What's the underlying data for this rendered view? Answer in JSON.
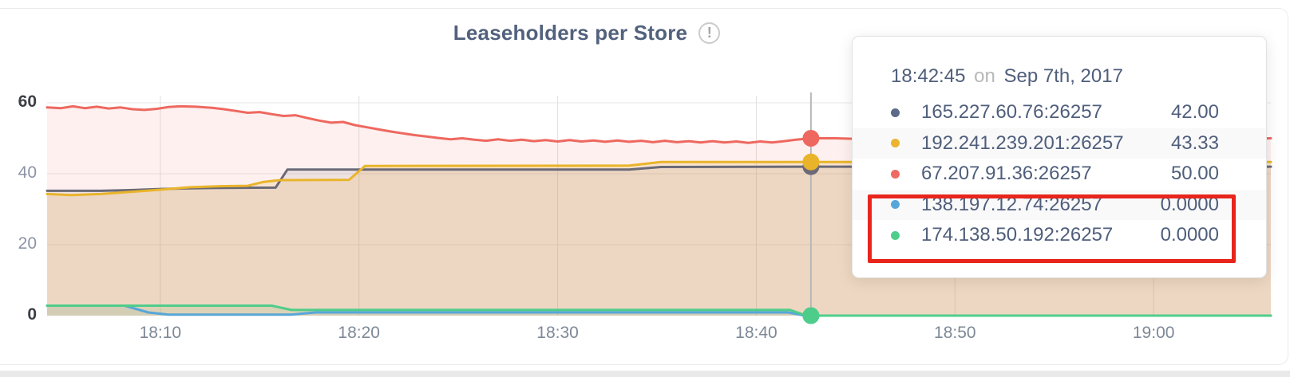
{
  "icons": {
    "info": "!"
  },
  "tooltip": {
    "time": "18:42:45",
    "conjunction": "on",
    "date": "Sep 7th, 2017",
    "rows": [
      {
        "label": "165.227.60.76:26257",
        "value": "42.00",
        "color": "#5d6b88",
        "highlighted": false
      },
      {
        "label": "192.241.239.201:26257",
        "value": "43.33",
        "color": "#eab430",
        "highlighted": false
      },
      {
        "label": "67.207.91.36:26257",
        "value": "50.00",
        "color": "#ef6a62",
        "highlighted": false
      },
      {
        "label": "138.197.12.74:26257",
        "value": "0.0000",
        "color": "#57a6d9",
        "highlighted": true
      },
      {
        "label": "174.138.50.192:26257",
        "value": "0.0000",
        "color": "#4ecd8a",
        "highlighted": true
      }
    ],
    "highlight_color": "#e8251c"
  },
  "chart_data": {
    "type": "area",
    "title": "Leaseholders per Store",
    "xlabel": "",
    "ylabel": "",
    "x_unit": "minutes after 18:00",
    "x_range": [
      4.3,
      65.9
    ],
    "y_range": [
      0,
      60
    ],
    "grid": true,
    "legend_position": "tooltip",
    "y_ticks": [
      {
        "v": 0,
        "label": "0",
        "strong": true
      },
      {
        "v": 20,
        "label": "20",
        "strong": false
      },
      {
        "v": 40,
        "label": "40",
        "strong": false
      },
      {
        "v": 60,
        "label": "60",
        "strong": true
      }
    ],
    "x_ticks": [
      {
        "t": 10,
        "label": "18:10"
      },
      {
        "t": 20,
        "label": "18:20"
      },
      {
        "t": 30,
        "label": "18:30"
      },
      {
        "t": 40,
        "label": "18:40"
      },
      {
        "t": 50,
        "label": "18:50"
      },
      {
        "t": 60,
        "label": "19:00"
      }
    ],
    "cursor": {
      "t": 42.75,
      "time": "18:42:45"
    },
    "series": [
      {
        "name": "138.197.12.74:26257",
        "color": "#57a6d9",
        "fill": "rgba(88,166,214,0.10)",
        "cursor_value": 0,
        "points": [
          [
            4.3,
            2.8
          ],
          [
            8.2,
            2.8
          ],
          [
            9.4,
            0.9
          ],
          [
            10.4,
            0.3
          ],
          [
            16.6,
            0.3
          ],
          [
            17.8,
            0.9
          ],
          [
            41.6,
            0.9
          ],
          [
            42.4,
            0.05
          ],
          [
            42.75,
            0
          ],
          [
            65.9,
            0
          ]
        ]
      },
      {
        "name": "174.138.50.192:26257",
        "color": "#4ecd8a",
        "fill": "rgba(79,206,140,0.15)",
        "cursor_value": 0,
        "points": [
          [
            4.3,
            2.8
          ],
          [
            15.6,
            2.8
          ],
          [
            16.6,
            1.6
          ],
          [
            41.7,
            1.6
          ],
          [
            42.5,
            0.05
          ],
          [
            42.75,
            0
          ],
          [
            65.9,
            0
          ]
        ]
      },
      {
        "name": "165.227.60.76:26257",
        "color": "#6a6977",
        "fill": "rgba(107,107,120,0.10)",
        "cursor_value": 42,
        "points": [
          [
            4.3,
            35.2
          ],
          [
            7,
            35.2
          ],
          [
            8.5,
            35.4
          ],
          [
            10,
            35.7
          ],
          [
            11.5,
            35.9
          ],
          [
            13,
            36
          ],
          [
            15.8,
            36.1
          ],
          [
            16.4,
            41.2
          ],
          [
            33.6,
            41.2
          ],
          [
            35.2,
            41.9
          ],
          [
            42.75,
            42
          ],
          [
            65.9,
            42
          ]
        ]
      },
      {
        "name": "192.241.239.201:26257",
        "color": "#e9b42a",
        "fill": "rgba(232,177,45,0.18)",
        "cursor_value": 43.33,
        "points": [
          [
            4.3,
            34.3
          ],
          [
            5.5,
            34
          ],
          [
            7,
            34.3
          ],
          [
            8.5,
            34.9
          ],
          [
            10,
            35.5
          ],
          [
            11.5,
            36.2
          ],
          [
            13,
            36.5
          ],
          [
            14.4,
            36.6
          ],
          [
            15.2,
            37.7
          ],
          [
            16,
            38.2
          ],
          [
            19.5,
            38.3
          ],
          [
            20.3,
            42.2
          ],
          [
            33.6,
            42.3
          ],
          [
            35.2,
            43.3
          ],
          [
            42.75,
            43.33
          ],
          [
            65.9,
            43.33
          ]
        ]
      },
      {
        "name": "67.207.91.36:26257",
        "color": "#ee685f",
        "fill": "rgba(238,104,95,0.10)",
        "cursor_value": 50,
        "points": [
          [
            4.3,
            58.7
          ],
          [
            5,
            58.5
          ],
          [
            5.6,
            59
          ],
          [
            6.2,
            58.5
          ],
          [
            6.8,
            58.9
          ],
          [
            7.4,
            58.4
          ],
          [
            8,
            58.7
          ],
          [
            8.6,
            58.2
          ],
          [
            9.2,
            58
          ],
          [
            9.8,
            58.3
          ],
          [
            10.4,
            58.8
          ],
          [
            11,
            59
          ],
          [
            11.8,
            58.9
          ],
          [
            12.6,
            58.6
          ],
          [
            13.2,
            58.2
          ],
          [
            13.8,
            57.7
          ],
          [
            14.4,
            57.2
          ],
          [
            15,
            57.4
          ],
          [
            15.6,
            56.8
          ],
          [
            16.2,
            56.3
          ],
          [
            16.8,
            56.5
          ],
          [
            17.4,
            55.7
          ],
          [
            18,
            55
          ],
          [
            18.6,
            54.4
          ],
          [
            19.2,
            54.6
          ],
          [
            19.8,
            53.7
          ],
          [
            20.4,
            53.1
          ],
          [
            21,
            52.5
          ],
          [
            21.6,
            51.9
          ],
          [
            22.2,
            51.4
          ],
          [
            22.8,
            50.9
          ],
          [
            23.4,
            50.5
          ],
          [
            24,
            50.1
          ],
          [
            24.6,
            49.7
          ],
          [
            25.2,
            50
          ],
          [
            25.8,
            49.6
          ],
          [
            26.4,
            49.3
          ],
          [
            27,
            49.7
          ],
          [
            27.6,
            49.3
          ],
          [
            28.2,
            49.6
          ],
          [
            28.8,
            49.2
          ],
          [
            29.4,
            49.5
          ],
          [
            30,
            49.1
          ],
          [
            30.6,
            49.5
          ],
          [
            31.2,
            49.1
          ],
          [
            31.8,
            49.4
          ],
          [
            32.4,
            49
          ],
          [
            33,
            49.4
          ],
          [
            33.6,
            49
          ],
          [
            34.2,
            49.3
          ],
          [
            34.8,
            48.9
          ],
          [
            35.4,
            49.3
          ],
          [
            36,
            48.9
          ],
          [
            36.6,
            49.2
          ],
          [
            37.2,
            48.8
          ],
          [
            37.8,
            49.2
          ],
          [
            38.4,
            48.8
          ],
          [
            39,
            49.1
          ],
          [
            39.6,
            48.7
          ],
          [
            40.2,
            49.1
          ],
          [
            40.8,
            48.8
          ],
          [
            41.4,
            49.2
          ],
          [
            42,
            49.6
          ],
          [
            42.75,
            50
          ],
          [
            44,
            50
          ],
          [
            45.2,
            49.8
          ],
          [
            46.4,
            50
          ],
          [
            47.6,
            49.8
          ],
          [
            48.8,
            50
          ],
          [
            50,
            49.8
          ],
          [
            51.2,
            50
          ],
          [
            52.4,
            49.8
          ],
          [
            53.6,
            50
          ],
          [
            54.8,
            49.8
          ],
          [
            56,
            50
          ],
          [
            57.2,
            49.8
          ],
          [
            58.4,
            50
          ],
          [
            59.6,
            49.8
          ],
          [
            60.8,
            50
          ],
          [
            62,
            49.8
          ],
          [
            63.2,
            50
          ],
          [
            64.4,
            49.8
          ],
          [
            65.9,
            50
          ]
        ]
      }
    ]
  }
}
